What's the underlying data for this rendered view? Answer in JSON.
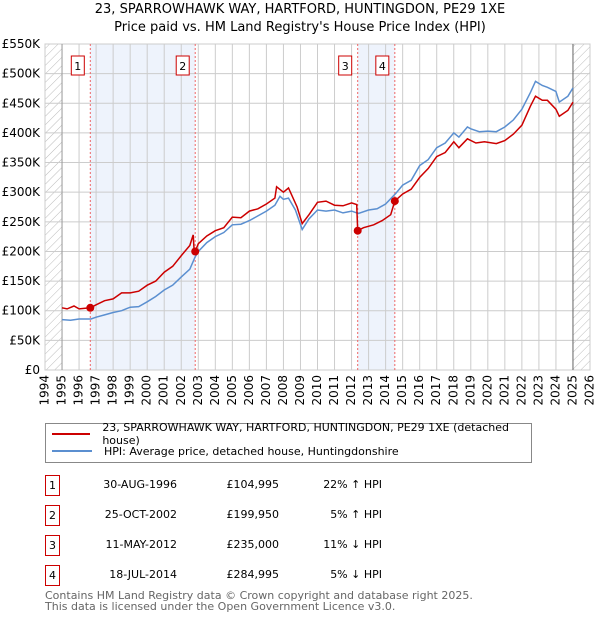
{
  "title": "23, SPARROWHAWK WAY, HARTFORD, HUNTINGDON, PE29 1XE",
  "subtitle": "Price paid vs. HM Land Registry's House Price Index (HPI)",
  "legend": {
    "red_label": "23, SPARROWHAWK WAY, HARTFORD, HUNTINGDON, PE29 1XE (detached house)",
    "blue_label": "HPI: Average price, detached house, Huntingdonshire"
  },
  "transactions": [
    {
      "num": "1",
      "date": "30-AUG-1996",
      "price": "£104,995",
      "hpi": "22% ↑ HPI"
    },
    {
      "num": "2",
      "date": "25-OCT-2002",
      "price": "£199,950",
      "hpi": "5% ↑ HPI"
    },
    {
      "num": "3",
      "date": "11-MAY-2012",
      "price": "£235,000",
      "hpi": "11% ↓ HPI"
    },
    {
      "num": "4",
      "date": "18-JUL-2014",
      "price": "£284,995",
      "hpi": "5% ↓ HPI"
    }
  ],
  "footer": {
    "line1": "Contains HM Land Registry data © Crown copyright and database right 2025.",
    "line2": "This data is licensed under the Open Government Licence v3.0."
  },
  "colors": {
    "red": "#cc0000",
    "blue": "#5b8fd0",
    "shade": "#eef3fc"
  },
  "chart_data": {
    "type": "line",
    "xlim": [
      1994,
      2026
    ],
    "ylim": [
      0,
      550
    ],
    "x_ticks": [
      "1994",
      "1995",
      "1996",
      "1997",
      "1998",
      "1999",
      "2000",
      "2001",
      "2002",
      "2003",
      "2004",
      "2005",
      "2006",
      "2007",
      "2008",
      "2009",
      "2010",
      "2011",
      "2012",
      "2013",
      "2014",
      "2015",
      "2016",
      "2017",
      "2018",
      "2019",
      "2020",
      "2021",
      "2022",
      "2023",
      "2024",
      "2025",
      "2026"
    ],
    "y_ticks": [
      {
        "v": 0,
        "label": "£0"
      },
      {
        "v": 50,
        "label": "£50K"
      },
      {
        "v": 100,
        "label": "£100K"
      },
      {
        "v": 150,
        "label": "£150K"
      },
      {
        "v": 200,
        "label": "£200K"
      },
      {
        "v": 250,
        "label": "£250K"
      },
      {
        "v": 300,
        "label": "£300K"
      },
      {
        "v": 350,
        "label": "£350K"
      },
      {
        "v": 400,
        "label": "£400K"
      },
      {
        "v": 450,
        "label": "£450K"
      },
      {
        "v": 500,
        "label": "£500K"
      },
      {
        "v": 550,
        "label": "£550K"
      }
    ],
    "hatched_before": 1995,
    "hatched_after": 2025,
    "shaded_ranges": [
      [
        1996.66,
        2002.82
      ],
      [
        2012.36,
        2014.54
      ]
    ],
    "sales": [
      {
        "label": "1",
        "x": 1996.66,
        "y": 104.995
      },
      {
        "label": "2",
        "x": 2002.82,
        "y": 199.95
      },
      {
        "label": "3",
        "x": 2012.36,
        "y": 235
      },
      {
        "label": "4",
        "x": 2014.54,
        "y": 284.995
      }
    ],
    "series": [
      {
        "name": "price_paid",
        "color": "#cc0000",
        "points": [
          [
            1995,
            105
          ],
          [
            1995.3,
            103
          ],
          [
            1995.7,
            108
          ],
          [
            1996,
            103
          ],
          [
            1996.66,
            105
          ],
          [
            1997,
            110
          ],
          [
            1997.5,
            117
          ],
          [
            1998,
            120
          ],
          [
            1998.5,
            130
          ],
          [
            1999,
            130
          ],
          [
            1999.5,
            133
          ],
          [
            2000,
            143
          ],
          [
            2000.5,
            150
          ],
          [
            2001,
            165
          ],
          [
            2001.5,
            175
          ],
          [
            2002,
            193
          ],
          [
            2002.5,
            210
          ],
          [
            2002.7,
            228
          ],
          [
            2002.75,
            205
          ],
          [
            2002.82,
            199.95
          ],
          [
            2003,
            213
          ],
          [
            2003.5,
            226
          ],
          [
            2004,
            235
          ],
          [
            2004.5,
            240
          ],
          [
            2005,
            258
          ],
          [
            2005.5,
            257
          ],
          [
            2006,
            268
          ],
          [
            2006.5,
            272
          ],
          [
            2007,
            280
          ],
          [
            2007.5,
            290
          ],
          [
            2007.6,
            309
          ],
          [
            2008,
            300
          ],
          [
            2008.3,
            307
          ],
          [
            2008.8,
            275
          ],
          [
            2009.1,
            247
          ],
          [
            2009.5,
            262
          ],
          [
            2010,
            283
          ],
          [
            2010.5,
            285
          ],
          [
            2011,
            278
          ],
          [
            2011.5,
            277
          ],
          [
            2012,
            282
          ],
          [
            2012.3,
            279
          ],
          [
            2012.36,
            235
          ],
          [
            2012.7,
            240
          ],
          [
            2013.3,
            245
          ],
          [
            2013.8,
            252
          ],
          [
            2014.3,
            262
          ],
          [
            2014.54,
            285
          ],
          [
            2015,
            297
          ],
          [
            2015.5,
            305
          ],
          [
            2016,
            325
          ],
          [
            2016.5,
            340
          ],
          [
            2017,
            360
          ],
          [
            2017.5,
            367
          ],
          [
            2018,
            385
          ],
          [
            2018.3,
            375
          ],
          [
            2018.8,
            390
          ],
          [
            2019.3,
            383
          ],
          [
            2019.8,
            385
          ],
          [
            2020.5,
            382
          ],
          [
            2021,
            387
          ],
          [
            2021.5,
            398
          ],
          [
            2022,
            413
          ],
          [
            2022.5,
            445
          ],
          [
            2022.8,
            462
          ],
          [
            2023.2,
            455
          ],
          [
            2023.5,
            455
          ],
          [
            2024,
            440
          ],
          [
            2024.2,
            428
          ],
          [
            2024.7,
            438
          ],
          [
            2025,
            452
          ]
        ]
      },
      {
        "name": "hpi",
        "color": "#5b8fd0",
        "points": [
          [
            1995,
            85
          ],
          [
            1995.5,
            84
          ],
          [
            1996,
            86
          ],
          [
            1996.7,
            86
          ],
          [
            1997,
            89
          ],
          [
            1997.5,
            93
          ],
          [
            1998,
            97
          ],
          [
            1998.5,
            100
          ],
          [
            1999,
            106
          ],
          [
            1999.5,
            107
          ],
          [
            2000,
            115
          ],
          [
            2000.5,
            124
          ],
          [
            2001,
            135
          ],
          [
            2001.5,
            143
          ],
          [
            2002,
            157
          ],
          [
            2002.5,
            170
          ],
          [
            2002.8,
            190
          ],
          [
            2003,
            200
          ],
          [
            2003.5,
            215
          ],
          [
            2004,
            225
          ],
          [
            2004.5,
            232
          ],
          [
            2005,
            245
          ],
          [
            2005.5,
            246
          ],
          [
            2006,
            252
          ],
          [
            2006.5,
            260
          ],
          [
            2007,
            268
          ],
          [
            2007.5,
            278
          ],
          [
            2007.8,
            293
          ],
          [
            2008,
            288
          ],
          [
            2008.3,
            290
          ],
          [
            2008.7,
            270
          ],
          [
            2009.1,
            237
          ],
          [
            2009.5,
            255
          ],
          [
            2010,
            270
          ],
          [
            2010.5,
            268
          ],
          [
            2011,
            270
          ],
          [
            2011.5,
            265
          ],
          [
            2012,
            268
          ],
          [
            2012.4,
            264
          ],
          [
            2013,
            270
          ],
          [
            2013.5,
            272
          ],
          [
            2014,
            280
          ],
          [
            2014.6,
            298
          ],
          [
            2015,
            312
          ],
          [
            2015.5,
            320
          ],
          [
            2016,
            345
          ],
          [
            2016.5,
            355
          ],
          [
            2017,
            375
          ],
          [
            2017.5,
            383
          ],
          [
            2018,
            400
          ],
          [
            2018.3,
            393
          ],
          [
            2018.8,
            410
          ],
          [
            2019,
            407
          ],
          [
            2019.5,
            402
          ],
          [
            2020,
            403
          ],
          [
            2020.5,
            402
          ],
          [
            2021,
            410
          ],
          [
            2021.5,
            422
          ],
          [
            2022,
            440
          ],
          [
            2022.5,
            468
          ],
          [
            2022.8,
            487
          ],
          [
            2023.2,
            480
          ],
          [
            2023.5,
            477
          ],
          [
            2024,
            470
          ],
          [
            2024.2,
            452
          ],
          [
            2024.7,
            462
          ],
          [
            2025,
            476
          ]
        ]
      }
    ]
  }
}
